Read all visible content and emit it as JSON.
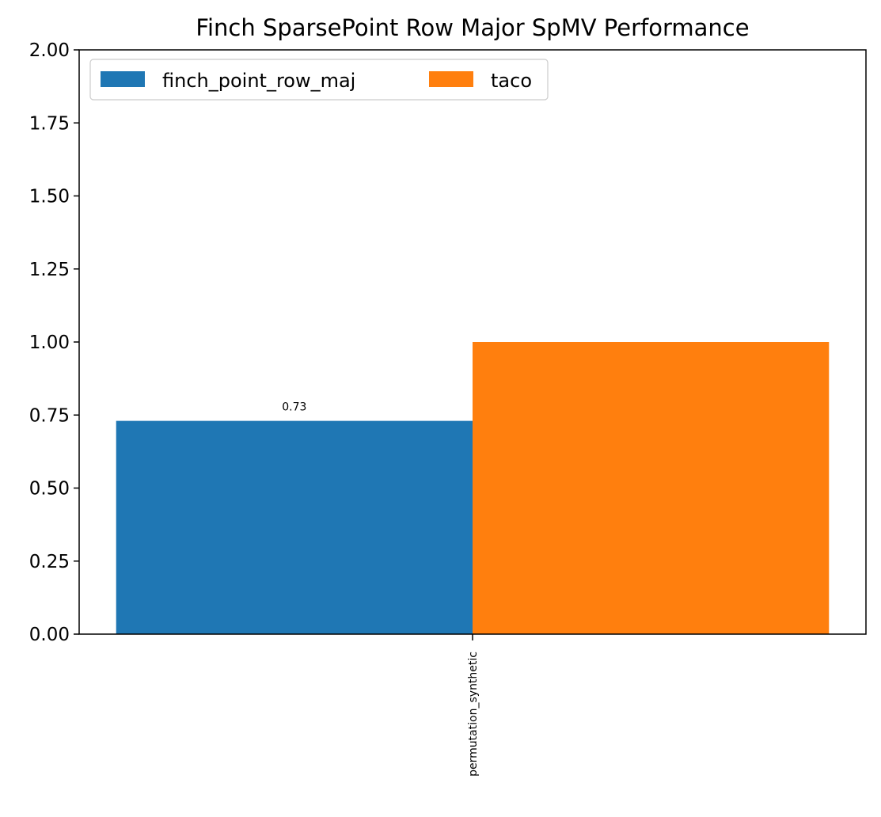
{
  "chart_data": {
    "type": "bar",
    "title": "Finch SparsePoint Row Major SpMV Performance",
    "xlabel": "",
    "ylabel": "",
    "categories": [
      "permutation_synthetic"
    ],
    "series": [
      {
        "name": "finch_point_row_maj",
        "values": [
          0.73
        ],
        "color": "#1f77b4",
        "data_labels": [
          "0.73"
        ]
      },
      {
        "name": "taco",
        "values": [
          1.0
        ],
        "color": "#ff7f0e",
        "data_labels": [
          ""
        ]
      }
    ],
    "ylim": [
      0,
      2.0
    ],
    "yticks": [
      "0.00",
      "0.25",
      "0.50",
      "0.75",
      "1.00",
      "1.25",
      "1.50",
      "1.75",
      "2.00"
    ],
    "grid": false,
    "legend_position": "top-left"
  }
}
